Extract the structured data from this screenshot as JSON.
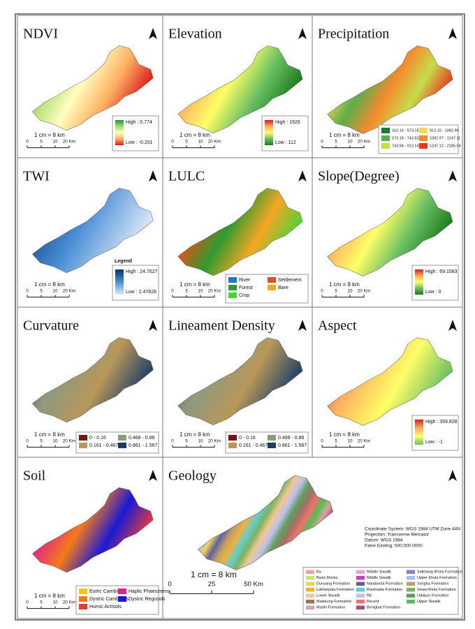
{
  "panels": [
    {
      "title": "NDVI",
      "scale": "1 cm = 8 km",
      "scale_ticks": [
        "0",
        "5",
        "10",
        "20 Km"
      ],
      "legend": {
        "high": "High : 0.774",
        "low": "Low : -0.201",
        "colors": [
          "#1a9641",
          "#a6d96a",
          "#ffffbf",
          "#fdae61",
          "#d7191c"
        ]
      }
    },
    {
      "title": "Elevation",
      "scale": "1 cm = 8 km",
      "scale_ticks": [
        "0",
        "5",
        "10",
        "20 Km"
      ],
      "legend": {
        "high": "High : 1926",
        "low": "Low : 112",
        "colors": [
          "#d7191c",
          "#fdae61",
          "#ffff66",
          "#66bd63",
          "#1a7a1a"
        ]
      }
    },
    {
      "title": "Precipitation",
      "scale": "1 cm = 8 km",
      "scale_ticks": [
        "0",
        "5",
        "10",
        "20 Km"
      ],
      "legend": {
        "items": [
          {
            "label": "310.16 - 573.18",
            "color": "#1b7a2e"
          },
          {
            "label": "913.15 - 1082.96",
            "color": "#f9d95a"
          },
          {
            "label": "573.19 - 743.83",
            "color": "#5cae4a"
          },
          {
            "label": "1082.97 - 1247.11",
            "color": "#f58a2d"
          },
          {
            "label": "743.84 - 913.14",
            "color": "#c6dd4a"
          },
          {
            "label": "1247.12 - 2185.54",
            "color": "#e8361f"
          }
        ]
      }
    },
    {
      "title": "TWI",
      "scale": "1 cm = 8 km",
      "scale_ticks": [
        "0",
        "5",
        "10",
        "20 Km"
      ],
      "legend": {
        "heading": "Legend",
        "high": "High : 24.7627",
        "low": "Low : 2.47828",
        "colors": [
          "#08306b",
          "#4a8fd6",
          "#deebf7"
        ]
      }
    },
    {
      "title": "LULC",
      "scale": "1 cm = 8 km",
      "scale_ticks": [
        "0",
        "5",
        "10",
        "20 Km"
      ],
      "legend": {
        "items": [
          {
            "label": "River",
            "color": "#1f78d4"
          },
          {
            "label": "Settlement",
            "color": "#e8501a"
          },
          {
            "label": "Forest",
            "color": "#2f9a2f"
          },
          {
            "label": "Bare",
            "color": "#f5a623"
          },
          {
            "label": "Crop",
            "color": "#4cd33a"
          }
        ]
      }
    },
    {
      "title": "Slope(Degree)",
      "scale": "1 cm = 8 km",
      "scale_ticks": [
        "0",
        "5",
        "10",
        "20 Km"
      ],
      "legend": {
        "high": "High : 69.1583",
        "low": "Low : 0",
        "colors": [
          "#d7191c",
          "#fdae61",
          "#ffff66",
          "#66bd63",
          "#1a7a1a"
        ]
      }
    },
    {
      "title": "Curvature",
      "scale": "1 cm = 8 km",
      "scale_ticks": [
        "0",
        "5",
        "10",
        "20 Km"
      ],
      "legend": {
        "items": [
          {
            "label": "0 - 0.16",
            "color": "#7a1010"
          },
          {
            "label": "0.468 - 0.86",
            "color": "#8c9a80"
          },
          {
            "label": "0.161 - 0.467",
            "color": "#b8975a"
          },
          {
            "label": "0.861 - 1.567",
            "color": "#1c3d66"
          }
        ]
      }
    },
    {
      "title": "Lineament Density",
      "scale": "1 cm = 8 km",
      "scale_ticks": [
        "0",
        "5",
        "10",
        "20 Km"
      ],
      "legend": {
        "items": [
          {
            "label": "0 - 0.16",
            "color": "#7a1010"
          },
          {
            "label": "0.468 - 0.86",
            "color": "#8c9a80"
          },
          {
            "label": "0.161 - 0.467",
            "color": "#b8975a"
          },
          {
            "label": "0.861 - 1.567",
            "color": "#1c3d66"
          }
        ]
      }
    },
    {
      "title": "Aspect",
      "scale": "1 cm = 8 km",
      "scale_ticks": [
        "0",
        "5",
        "10",
        "20 Km"
      ],
      "legend": {
        "high": "High : 359.828",
        "low": "Low : -1",
        "colors": [
          "#d7191c",
          "#fdae61",
          "#ffff66",
          "#66bd63"
        ]
      }
    },
    {
      "title": "Soil",
      "scale": "1 cm = 8 km",
      "scale_ticks": [
        "0",
        "5",
        "10",
        "20 Km"
      ],
      "legend": {
        "items": [
          {
            "label": "Eutric Cambisols",
            "color": "#f5c518"
          },
          {
            "label": "Haplic Phaeozems",
            "color": "#e0208c"
          },
          {
            "label": "Dystric Cambisols",
            "color": "#f57a1a"
          },
          {
            "label": "Dystric Regosols",
            "color": "#1a1ad6"
          },
          {
            "label": "Humic Acrisols",
            "color": "#e83a3a"
          }
        ]
      }
    },
    {
      "title": "Geology",
      "scale": "1 cm = 8 km",
      "scale_ticks": [
        "0",
        "25",
        "50 Km"
      ],
      "notes": [
        "Coordinate System: WGS 1984 UTM Zone 44N",
        "Projection: Transverse Mercator",
        "Datum: WGS 1984",
        "False Easting: 500,000.0000"
      ],
      "legend": {
        "items": [
          {
            "label": "Ba",
            "color": "#f2a09a"
          },
          {
            "label": "Middle Siwalik",
            "color": "#f0a0d0"
          },
          {
            "label": "Salkhang Khola Formation",
            "color": "#8080e0"
          },
          {
            "label": "Basic Rocks",
            "color": "#c8e080"
          },
          {
            "label": "Middle Siwalik",
            "color": "#c040c0"
          },
          {
            "label": "Upper Khola Formation",
            "color": "#a0c0f0"
          },
          {
            "label": "Dunyang Formation",
            "color": "#f0d060"
          },
          {
            "label": "Naudanda Formation",
            "color": "#6060a0"
          },
          {
            "label": "Sangha Formation",
            "color": "#c0a060"
          },
          {
            "label": "Lakharpata Formation",
            "color": "#f0b040"
          },
          {
            "label": "Ranimatta Formation",
            "color": "#60d0d0"
          },
          {
            "label": "Sewa Khola Formation",
            "color": "#80b060"
          },
          {
            "label": "Lower Siwalik",
            "color": "#f0c890"
          },
          {
            "label": "Rb",
            "color": "#c0c0f0"
          },
          {
            "label": "Udaipur Formation",
            "color": "#60a060"
          },
          {
            "label": "Malekung Formation",
            "color": "#a07060"
          },
          {
            "label": "Recent",
            "color": "#f07070"
          },
          {
            "label": "Upper Siwalik",
            "color": "#50c050"
          },
          {
            "label": "Madhi Formation",
            "color": "#e0a0a0"
          },
          {
            "label": "Benighat Formation",
            "color": "#a05080"
          }
        ]
      }
    }
  ]
}
